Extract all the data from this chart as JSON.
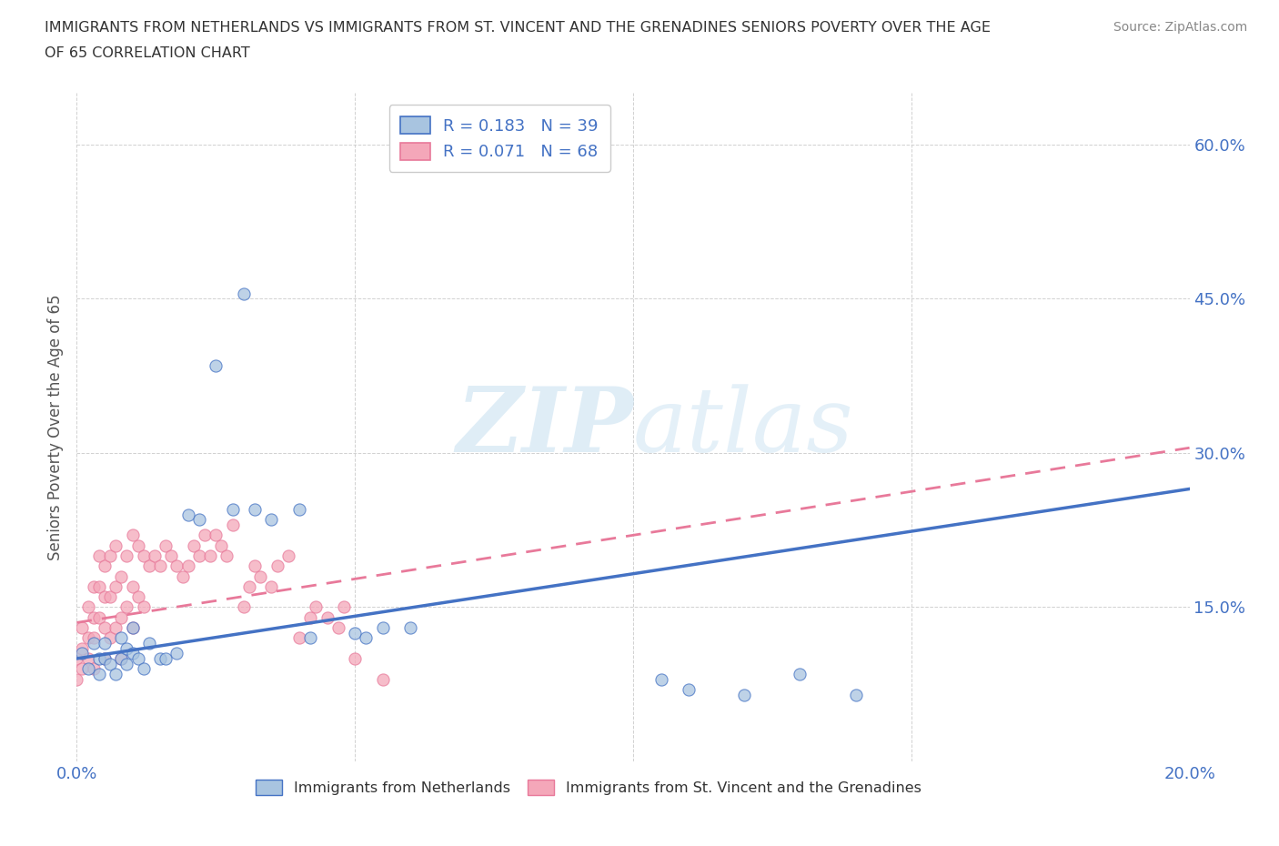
{
  "title_line1": "IMMIGRANTS FROM NETHERLANDS VS IMMIGRANTS FROM ST. VINCENT AND THE GRENADINES SENIORS POVERTY OVER THE AGE",
  "title_line2": "OF 65 CORRELATION CHART",
  "source": "Source: ZipAtlas.com",
  "ylabel": "Seniors Poverty Over the Age of 65",
  "xlim": [
    0.0,
    0.2
  ],
  "ylim": [
    0.0,
    0.65
  ],
  "x_ticks": [
    0.0,
    0.05,
    0.1,
    0.15,
    0.2
  ],
  "x_tick_labels": [
    "0.0%",
    "",
    "",
    "",
    "20.0%"
  ],
  "y_ticks": [
    0.0,
    0.15,
    0.3,
    0.45,
    0.6
  ],
  "y_tick_labels": [
    "",
    "15.0%",
    "30.0%",
    "45.0%",
    "60.0%"
  ],
  "watermark": "ZIPatlas",
  "legend_R_netherlands": "0.183",
  "legend_N_netherlands": "39",
  "legend_R_svg": "0.071",
  "legend_N_svg": "68",
  "color_netherlands": "#a8c4e0",
  "color_svg": "#f4a7b9",
  "color_netherlands_line": "#4472c4",
  "color_svg_line": "#f4a7b9",
  "netherlands_scatter_x": [
    0.001,
    0.002,
    0.003,
    0.004,
    0.004,
    0.005,
    0.005,
    0.006,
    0.007,
    0.008,
    0.008,
    0.009,
    0.009,
    0.01,
    0.01,
    0.011,
    0.012,
    0.013,
    0.015,
    0.016,
    0.018,
    0.02,
    0.022,
    0.025,
    0.028,
    0.03,
    0.032,
    0.035,
    0.04,
    0.042,
    0.05,
    0.052,
    0.055,
    0.06,
    0.13,
    0.14,
    0.105,
    0.11,
    0.12
  ],
  "netherlands_scatter_y": [
    0.105,
    0.09,
    0.115,
    0.1,
    0.085,
    0.1,
    0.115,
    0.095,
    0.085,
    0.1,
    0.12,
    0.11,
    0.095,
    0.105,
    0.13,
    0.1,
    0.09,
    0.115,
    0.1,
    0.1,
    0.105,
    0.24,
    0.235,
    0.385,
    0.245,
    0.455,
    0.245,
    0.235,
    0.245,
    0.12,
    0.125,
    0.12,
    0.13,
    0.13,
    0.085,
    0.065,
    0.08,
    0.07,
    0.065
  ],
  "svg_scatter_x": [
    0.0,
    0.0,
    0.001,
    0.001,
    0.001,
    0.002,
    0.002,
    0.002,
    0.003,
    0.003,
    0.003,
    0.003,
    0.004,
    0.004,
    0.004,
    0.005,
    0.005,
    0.005,
    0.005,
    0.006,
    0.006,
    0.006,
    0.007,
    0.007,
    0.007,
    0.008,
    0.008,
    0.008,
    0.009,
    0.009,
    0.01,
    0.01,
    0.01,
    0.011,
    0.011,
    0.012,
    0.012,
    0.013,
    0.014,
    0.015,
    0.016,
    0.017,
    0.018,
    0.019,
    0.02,
    0.021,
    0.022,
    0.023,
    0.024,
    0.025,
    0.026,
    0.027,
    0.028,
    0.03,
    0.031,
    0.032,
    0.033,
    0.035,
    0.036,
    0.038,
    0.04,
    0.042,
    0.043,
    0.045,
    0.047,
    0.048,
    0.05,
    0.055
  ],
  "svg_scatter_y": [
    0.08,
    0.1,
    0.09,
    0.11,
    0.13,
    0.1,
    0.12,
    0.15,
    0.09,
    0.12,
    0.14,
    0.17,
    0.14,
    0.17,
    0.2,
    0.1,
    0.13,
    0.16,
    0.19,
    0.12,
    0.16,
    0.2,
    0.13,
    0.17,
    0.21,
    0.1,
    0.14,
    0.18,
    0.15,
    0.2,
    0.13,
    0.17,
    0.22,
    0.16,
    0.21,
    0.15,
    0.2,
    0.19,
    0.2,
    0.19,
    0.21,
    0.2,
    0.19,
    0.18,
    0.19,
    0.21,
    0.2,
    0.22,
    0.2,
    0.22,
    0.21,
    0.2,
    0.23,
    0.15,
    0.17,
    0.19,
    0.18,
    0.17,
    0.19,
    0.2,
    0.12,
    0.14,
    0.15,
    0.14,
    0.13,
    0.15,
    0.1,
    0.08
  ],
  "netherlands_line_x": [
    0.0,
    0.2
  ],
  "netherlands_line_y": [
    0.1,
    0.265
  ],
  "svg_line_x": [
    0.0,
    0.2
  ],
  "svg_line_y": [
    0.135,
    0.305
  ]
}
